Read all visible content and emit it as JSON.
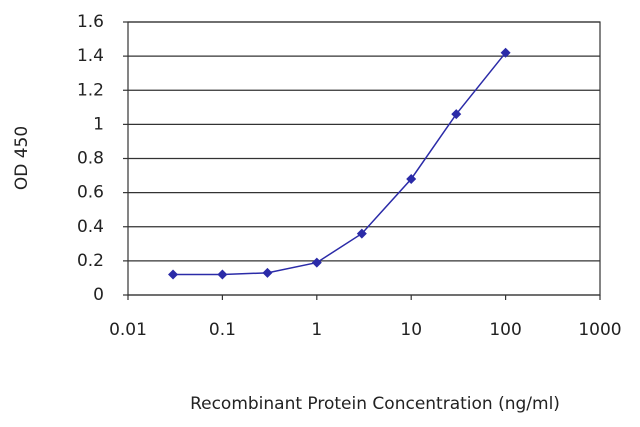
{
  "chart_data": {
    "type": "line",
    "x_label": "Recombinant Protein Concentration (ng/ml)",
    "y_label": "OD 450",
    "x": [
      0.03,
      0.1,
      0.3,
      1,
      3,
      10,
      30,
      100
    ],
    "series": [
      {
        "color": "#2b2ba8",
        "values": [
          0.12,
          0.12,
          0.13,
          0.19,
          0.36,
          0.68,
          1.06,
          1.42
        ]
      }
    ],
    "xlim": [
      0.01,
      1000
    ],
    "xticks": [
      0.01,
      0.1,
      1,
      10,
      100,
      1000
    ],
    "x_log": true,
    "ylim": [
      0,
      1.6
    ],
    "yticks": [
      0,
      0.2,
      0.4,
      0.6,
      0.8,
      1,
      1.2,
      1.4,
      1.6
    ],
    "grid": true
  }
}
